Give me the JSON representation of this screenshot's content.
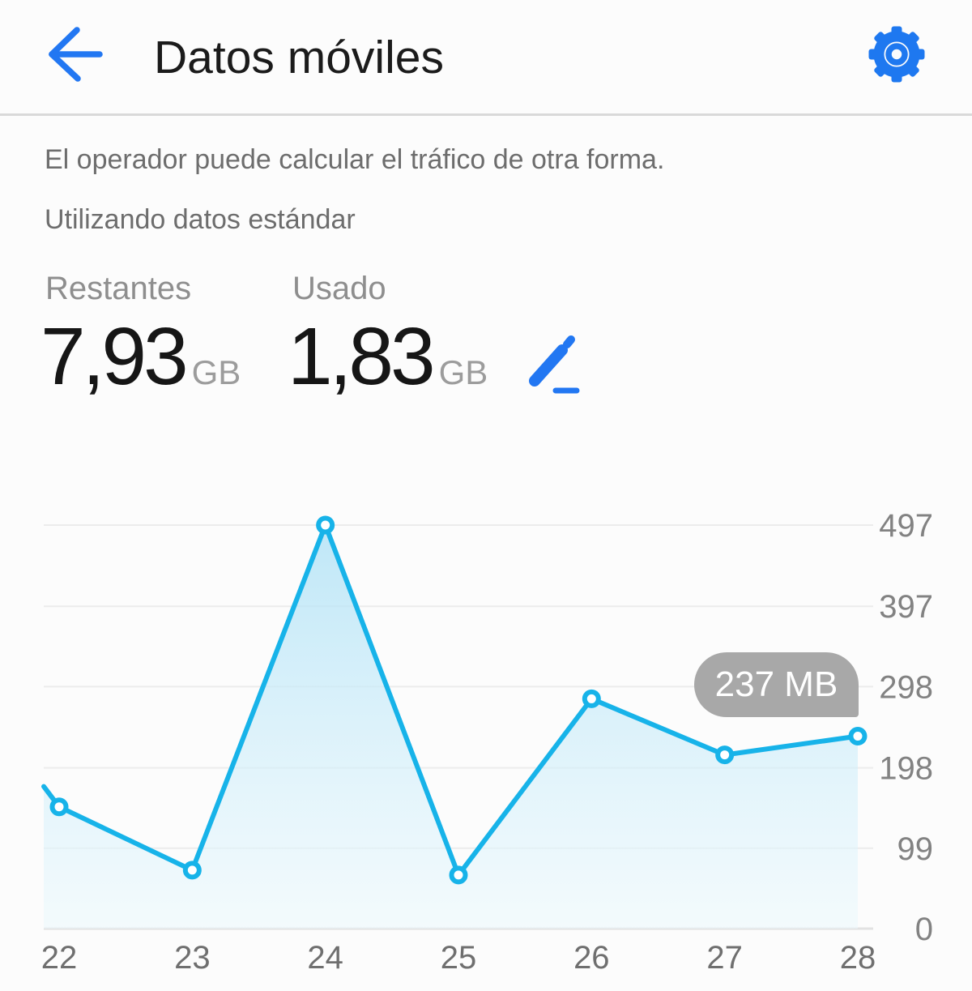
{
  "header": {
    "title": "Datos móviles",
    "back_icon": "back-arrow-icon",
    "settings_icon": "gear-icon"
  },
  "info": {
    "line1": "El operador puede calcular el tráfico de otra forma.",
    "line2": "Utilizando datos estándar"
  },
  "stats": {
    "remaining": {
      "label": "Restantes",
      "value": "7,93",
      "unit": "GB"
    },
    "used": {
      "label": "Usado",
      "value": "1,83",
      "unit": "GB"
    },
    "edit_icon": "pencil-edit-icon"
  },
  "colors": {
    "accent_blue": "#2277f2",
    "line_cyan": "#17b3e9",
    "marker_fill": "#ffffff",
    "area_top": "rgba(170,224,246,0.75)",
    "area_bottom": "rgba(236,249,253,0.55)",
    "gridline": "#ececec",
    "baseline": "#e2e2e2",
    "y_label": "#828282",
    "x_label": "#6f6f6f",
    "tooltip_bg": "#a8a8a8"
  },
  "chart_data": {
    "type": "area",
    "title": "",
    "categories": [
      22,
      23,
      24,
      25,
      26,
      27,
      28
    ],
    "values": [
      150,
      72,
      497,
      66,
      283,
      214,
      237
    ],
    "unit": "MB",
    "y_ticks": [
      497,
      397,
      298,
      198,
      99,
      0
    ],
    "ylim": [
      0,
      497
    ],
    "grid": true,
    "legend": "none",
    "left_edge_clip_value": 175,
    "tooltip": {
      "label": "237 MB",
      "target_day": 28
    }
  }
}
